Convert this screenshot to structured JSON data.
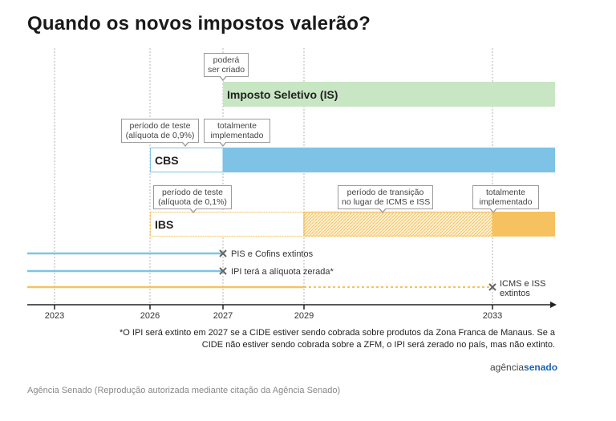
{
  "title": "Quando os novos impostos valerão?",
  "callouts": {
    "is_pode": "poderá\nser criado",
    "cbs_teste": "período de teste\n(alíquota de 0,9%)",
    "cbs_total": "totalmente\nimplementado",
    "ibs_teste": "período de teste\n(alíquota de 0,1%)",
    "ibs_trans": "período de transição\nno lugar de ICMS e ISS",
    "ibs_total": "totalmente\nimplementado"
  },
  "bars": {
    "is": "Imposto Seletivo (IS)",
    "cbs": "CBS",
    "ibs": "IBS"
  },
  "extinctions": {
    "pis": "PIS e Cofins extintos",
    "ipi": "IPI terá a alíquota zerada*",
    "icms": "ICMS e ISS\nextintos"
  },
  "years": [
    "2023",
    "2026",
    "2027",
    "2029",
    "2033"
  ],
  "footnote": "*O IPI será extinto em 2027 se a CIDE estiver sendo cobrada sobre produtos da Zona Franca de Manaus. Se a CIDE não estiver sendo cobrada sobre a ZFM, o IPI será zerado no país, mas não extinto.",
  "logo": {
    "part1": "agência",
    "part2": "senado"
  },
  "credit": "Agência Senado (Reprodução autorizada mediante citação da Agência Senado)",
  "colors": {
    "is": "#c8e6c3",
    "cbs": "#7ec3e6",
    "ibs": "#f6c25f",
    "axis": "#222222"
  }
}
